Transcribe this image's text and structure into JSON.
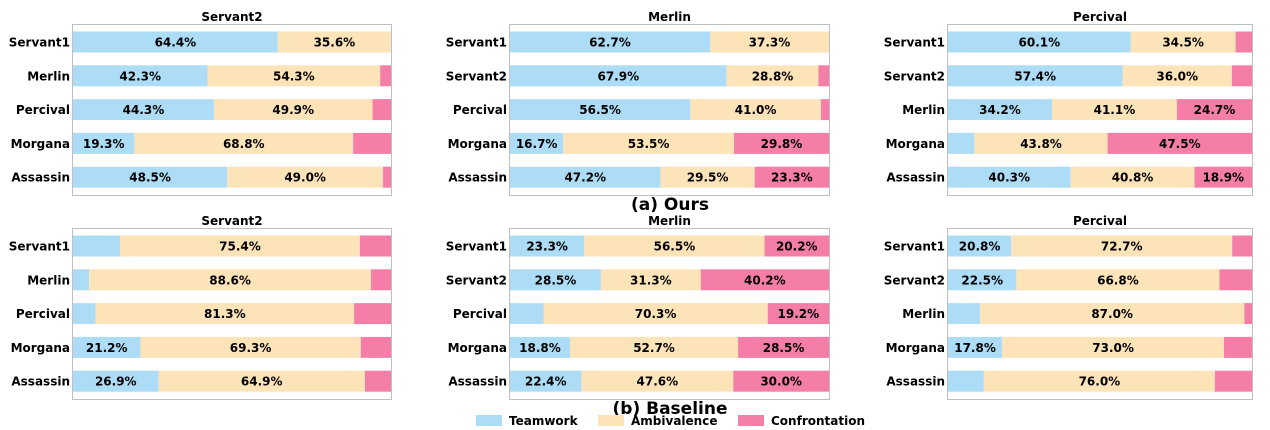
{
  "colors": {
    "Teamwork": "#ADDCF6",
    "Ambivalence": "#FCE3B8",
    "Confrontation": "#F57EA9"
  },
  "row_titles": {
    "ours": "(a) Ours",
    "baseline": "(b) Baseline"
  },
  "legend": [
    "Teamwork",
    "Ambivalence",
    "Confrontation"
  ],
  "chart_data": [
    {
      "type": "bar",
      "orientation": "horizontal",
      "stacked": true,
      "group": "ours",
      "title": "Servant2",
      "categories": [
        "Servant1",
        "Merlin",
        "Percival",
        "Morgana",
        "Assassin"
      ],
      "series": [
        {
          "name": "Teamwork",
          "values": [
            64.4,
            42.3,
            44.3,
            19.3,
            48.5
          ]
        },
        {
          "name": "Ambivalence",
          "values": [
            35.6,
            54.3,
            49.9,
            68.8,
            49.0
          ]
        },
        {
          "name": "Confrontation",
          "values": [
            0.0,
            3.4,
            5.8,
            11.9,
            2.5
          ]
        }
      ],
      "labels": [
        [
          "64.4%",
          "35.6%",
          ""
        ],
        [
          "42.3%",
          "54.3%",
          ""
        ],
        [
          "44.3%",
          "49.9%",
          ""
        ],
        [
          "19.3%",
          "68.8%",
          ""
        ],
        [
          "48.5%",
          "49.0%",
          ""
        ]
      ],
      "xlim": [
        0,
        100
      ]
    },
    {
      "type": "bar",
      "orientation": "horizontal",
      "stacked": true,
      "group": "ours",
      "title": "Merlin",
      "categories": [
        "Servant1",
        "Servant2",
        "Percival",
        "Morgana",
        "Assassin"
      ],
      "series": [
        {
          "name": "Teamwork",
          "values": [
            62.7,
            67.9,
            56.5,
            16.7,
            47.2
          ]
        },
        {
          "name": "Ambivalence",
          "values": [
            37.3,
            28.8,
            41.0,
            53.5,
            29.5
          ]
        },
        {
          "name": "Confrontation",
          "values": [
            0.0,
            3.3,
            2.5,
            29.8,
            23.3
          ]
        }
      ],
      "labels": [
        [
          "62.7%",
          "37.3%",
          ""
        ],
        [
          "67.9%",
          "28.8%",
          ""
        ],
        [
          "56.5%",
          "41.0%",
          ""
        ],
        [
          "16.7%",
          "53.5%",
          "29.8%"
        ],
        [
          "47.2%",
          "29.5%",
          "23.3%"
        ]
      ],
      "xlim": [
        0,
        100
      ]
    },
    {
      "type": "bar",
      "orientation": "horizontal",
      "stacked": true,
      "group": "ours",
      "title": "Percival",
      "categories": [
        "Servant1",
        "Servant2",
        "Merlin",
        "Morgana",
        "Assassin"
      ],
      "series": [
        {
          "name": "Teamwork",
          "values": [
            60.1,
            57.4,
            34.2,
            8.7,
            40.3
          ]
        },
        {
          "name": "Ambivalence",
          "values": [
            34.5,
            36.0,
            41.1,
            43.8,
            40.8
          ]
        },
        {
          "name": "Confrontation",
          "values": [
            5.4,
            6.6,
            24.7,
            47.5,
            18.9
          ]
        }
      ],
      "labels": [
        [
          "60.1%",
          "34.5%",
          ""
        ],
        [
          "57.4%",
          "36.0%",
          ""
        ],
        [
          "34.2%",
          "41.1%",
          "24.7%"
        ],
        [
          "",
          "43.8%",
          "47.5%"
        ],
        [
          "40.3%",
          "40.8%",
          "18.9%"
        ]
      ],
      "xlim": [
        0,
        100
      ]
    },
    {
      "type": "bar",
      "orientation": "horizontal",
      "stacked": true,
      "group": "baseline",
      "title": "Servant2",
      "categories": [
        "Servant1",
        "Merlin",
        "Percival",
        "Morgana",
        "Assassin"
      ],
      "series": [
        {
          "name": "Teamwork",
          "values": [
            14.8,
            5.1,
            7.1,
            21.2,
            26.9
          ]
        },
        {
          "name": "Ambivalence",
          "values": [
            75.4,
            88.6,
            81.3,
            69.3,
            64.9
          ]
        },
        {
          "name": "Confrontation",
          "values": [
            9.8,
            6.3,
            11.6,
            9.5,
            8.2
          ]
        }
      ],
      "labels": [
        [
          "",
          "75.4%",
          ""
        ],
        [
          "",
          "88.6%",
          ""
        ],
        [
          "",
          "81.3%",
          ""
        ],
        [
          "21.2%",
          "69.3%",
          ""
        ],
        [
          "26.9%",
          "64.9%",
          ""
        ]
      ],
      "xlim": [
        0,
        100
      ]
    },
    {
      "type": "bar",
      "orientation": "horizontal",
      "stacked": true,
      "group": "baseline",
      "title": "Merlin",
      "categories": [
        "Servant1",
        "Servant2",
        "Percival",
        "Morgana",
        "Assassin"
      ],
      "series": [
        {
          "name": "Teamwork",
          "values": [
            23.3,
            28.5,
            10.5,
            18.8,
            22.4
          ]
        },
        {
          "name": "Ambivalence",
          "values": [
            56.5,
            31.3,
            70.3,
            52.7,
            47.6
          ]
        },
        {
          "name": "Confrontation",
          "values": [
            20.2,
            40.2,
            19.2,
            28.5,
            30.0
          ]
        }
      ],
      "labels": [
        [
          "23.3%",
          "56.5%",
          "20.2%"
        ],
        [
          "28.5%",
          "31.3%",
          "40.2%"
        ],
        [
          "",
          "70.3%",
          "19.2%"
        ],
        [
          "18.8%",
          "52.7%",
          "28.5%"
        ],
        [
          "22.4%",
          "47.6%",
          "30.0%"
        ]
      ],
      "xlim": [
        0,
        100
      ]
    },
    {
      "type": "bar",
      "orientation": "horizontal",
      "stacked": true,
      "group": "baseline",
      "title": "Percival",
      "categories": [
        "Servant1",
        "Servant2",
        "Merlin",
        "Morgana",
        "Assassin"
      ],
      "series": [
        {
          "name": "Teamwork",
          "values": [
            20.8,
            22.5,
            10.5,
            17.8,
            11.8
          ]
        },
        {
          "name": "Ambivalence",
          "values": [
            72.7,
            66.8,
            87.0,
            73.0,
            76.0
          ]
        },
        {
          "name": "Confrontation",
          "values": [
            6.5,
            10.7,
            2.5,
            9.2,
            12.2
          ]
        }
      ],
      "labels": [
        [
          "20.8%",
          "72.7%",
          ""
        ],
        [
          "22.5%",
          "66.8%",
          ""
        ],
        [
          "",
          "87.0%",
          ""
        ],
        [
          "17.8%",
          "73.0%",
          ""
        ],
        [
          "",
          "76.0%",
          ""
        ]
      ],
      "xlim": [
        0,
        100
      ]
    }
  ]
}
